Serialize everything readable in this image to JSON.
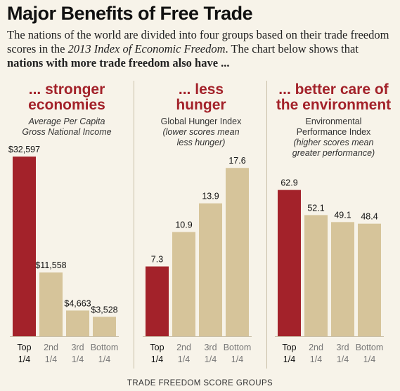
{
  "title": "Major Benefits of Free Trade",
  "intro": {
    "part1": "The nations of the world are divided into four groups based on their trade freedom scores in the ",
    "italic": "2013 Index of Economic Freedom",
    "part2": ". The chart below shows that ",
    "bold": "nations with more trade freedom also have ..."
  },
  "footer": "TRADE FREEDOM SCORE GROUPS",
  "colors": {
    "highlight": "#a3222a",
    "bar": "#d6c49a",
    "accent_text": "#a3222a"
  },
  "chart_data": [
    {
      "type": "bar",
      "heading": [
        "... stronger",
        "economies"
      ],
      "subtitle_italic": [
        "Average Per Capita",
        "Gross National Income"
      ],
      "subtitle_plain": [],
      "categories": [
        [
          "Top",
          "1/4"
        ],
        [
          "2nd",
          "1/4"
        ],
        [
          "3rd",
          "1/4"
        ],
        [
          "Bottom",
          "1/4"
        ]
      ],
      "values": [
        32597,
        11558,
        4663,
        3528
      ],
      "labels": [
        "$32,597",
        "$11,558",
        "$4,663",
        "$3,528"
      ],
      "ylim": [
        0,
        34000
      ]
    },
    {
      "type": "bar",
      "heading": [
        "... less",
        "hunger"
      ],
      "subtitle_plain": [
        "Global Hunger Index"
      ],
      "subtitle_italic": [
        "(lower scores mean",
        "less hunger)"
      ],
      "categories": [
        [
          "Top",
          "1/4"
        ],
        [
          "2nd",
          "1/4"
        ],
        [
          "3rd",
          "1/4"
        ],
        [
          "Bottom",
          "1/4"
        ]
      ],
      "values": [
        7.3,
        10.9,
        13.9,
        17.6
      ],
      "labels": [
        "7.3",
        "10.9",
        "13.9",
        "17.6"
      ],
      "ylim": [
        0,
        19.6
      ]
    },
    {
      "type": "bar",
      "heading": [
        "... better care of",
        "the environment"
      ],
      "subtitle_plain": [
        "Environmental",
        "Performance Index"
      ],
      "subtitle_italic": [
        "(higher scores mean",
        "greater performance)"
      ],
      "categories": [
        [
          "Top",
          "1/4"
        ],
        [
          "2nd",
          "1/4"
        ],
        [
          "3rd",
          "1/4"
        ],
        [
          "Bottom",
          "1/4"
        ]
      ],
      "values": [
        62.9,
        52.1,
        49.1,
        48.4
      ],
      "labels": [
        "62.9",
        "52.1",
        "49.1",
        "48.4"
      ],
      "ylim": [
        0,
        80.6
      ]
    }
  ]
}
